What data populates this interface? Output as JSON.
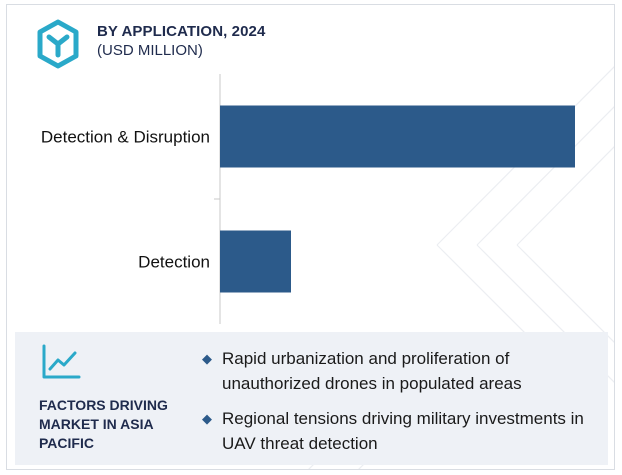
{
  "header": {
    "title": "BY APPLICATION, 2024",
    "subtitle": "(USD MILLION)",
    "logo_icon": "hexagon-y-logo-icon"
  },
  "colors": {
    "bar": "#2c5a8a",
    "logo": "#2aa9c9",
    "title_text": "#1f2b4d",
    "footer_bg": "#eef1f6"
  },
  "chart_data": {
    "type": "bar",
    "orientation": "horizontal",
    "categories": [
      "Detection & Disruption",
      "Detection"
    ],
    "values": [
      100,
      20
    ],
    "title": "",
    "xlabel": "",
    "ylabel": "",
    "xlim": [
      0,
      100
    ],
    "grid": false
  },
  "footer": {
    "icon": "line-chart-icon",
    "title": "FACTORS DRIVING MARKET IN ASIA PACIFIC",
    "factors": [
      "Rapid urbanization and proliferation of unauthorized drones in populated areas",
      "Regional tensions driving military investments in UAV threat detection"
    ]
  }
}
